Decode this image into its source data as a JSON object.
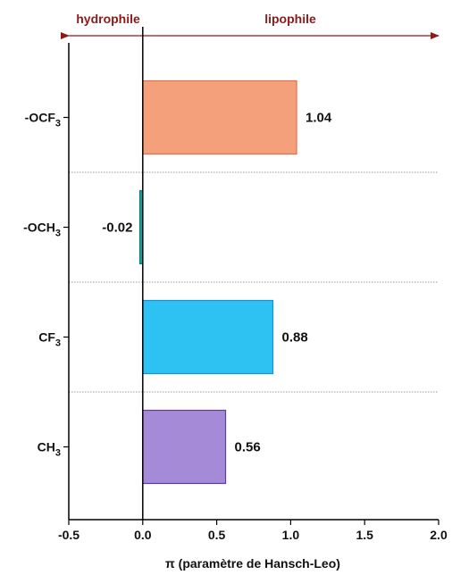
{
  "chart_data": {
    "type": "bar",
    "orientation": "horizontal",
    "categories": [
      {
        "base": "-OCF",
        "sub": "3"
      },
      {
        "base": "-OCH",
        "sub": "3"
      },
      {
        "base": "CF",
        "sub": "3"
      },
      {
        "base": "CH",
        "sub": "3"
      }
    ],
    "values": [
      1.04,
      -0.02,
      0.88,
      0.56
    ],
    "value_labels": [
      "1.04",
      "-0.02",
      "0.88",
      "0.56"
    ],
    "bar_colors": [
      "#f4a07a",
      "#1aa0a0",
      "#2ec2f2",
      "#a58ad8"
    ],
    "bar_edge_colors": [
      "#e07050",
      "#0b7a7a",
      "#1a8fd8",
      "#5c3f9a"
    ],
    "xlabel": "π (paramètre de Hansch-Leo)",
    "xlim": [
      -0.5,
      2.0
    ],
    "xticks": [
      "-0.5",
      "0.0",
      "0.5",
      "1.0",
      "1.5",
      "2.0"
    ],
    "region_labels": {
      "left": "hydrophile",
      "right": "lipophile"
    },
    "region_color": "#8b1a1a",
    "grid": false,
    "separators": "dotted"
  }
}
